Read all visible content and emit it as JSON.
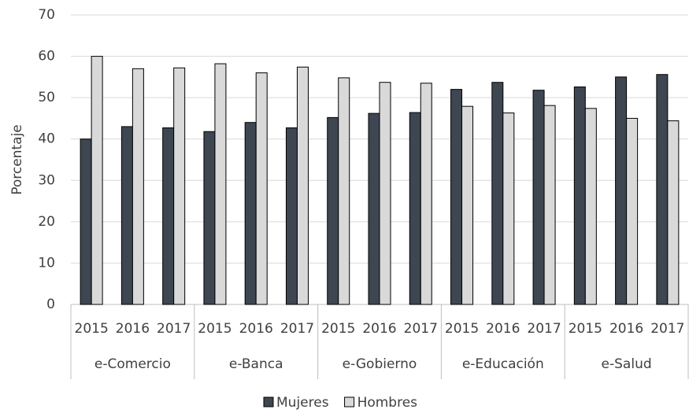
{
  "chart_data": {
    "type": "bar",
    "y_label": "Porcentaje",
    "categories": [
      "2015",
      "2016",
      "2017",
      "2015",
      "2016",
      "2017",
      "2015",
      "2016",
      "2017",
      "2015",
      "2016",
      "2017",
      "2015",
      "2016",
      "2017"
    ],
    "groups": [
      "e-Comercio",
      "e-Banca",
      "e-Gobierno",
      "e-Educación",
      "e-Salud"
    ],
    "series": [
      {
        "name": "Mujeres",
        "color": "#3e4652",
        "values": [
          40,
          43,
          42.7,
          41.8,
          44,
          42.7,
          45.2,
          46.2,
          46.4,
          52,
          53.7,
          51.8,
          52.6,
          55,
          55.6
        ]
      },
      {
        "name": "Hombres",
        "color": "#d9d9d9",
        "values": [
          60,
          57,
          57.2,
          58.2,
          56,
          57.4,
          54.8,
          53.7,
          53.5,
          47.9,
          46.3,
          48.1,
          47.4,
          45,
          44.4
        ]
      }
    ],
    "ylim": [
      0,
      70
    ],
    "yticks": [
      0,
      10,
      20,
      30,
      40,
      50,
      60,
      70
    ],
    "grid": true,
    "legend": "bottom"
  }
}
